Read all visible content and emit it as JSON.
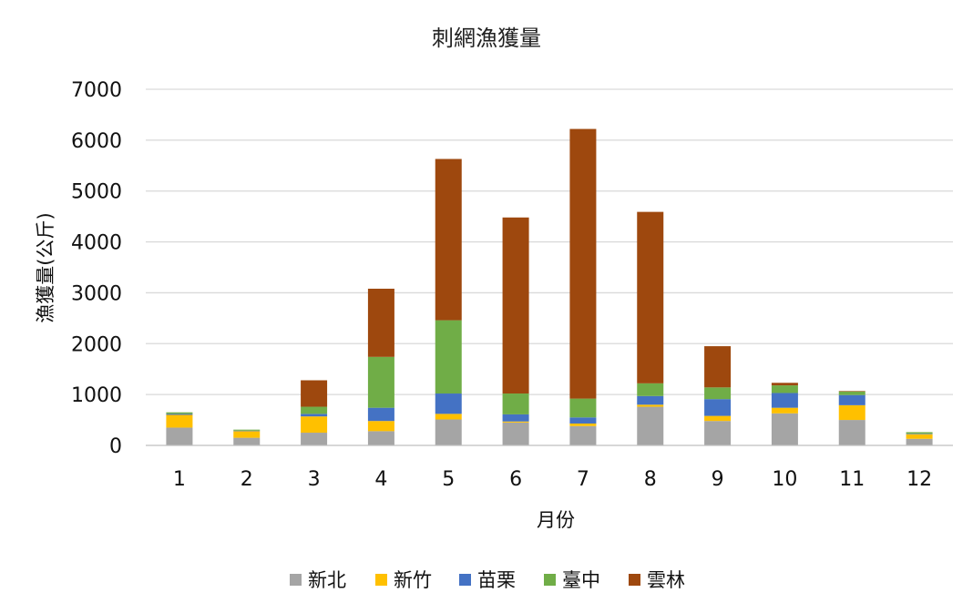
{
  "chart_data": {
    "type": "bar",
    "stacked": true,
    "title": "刺網漁獲量",
    "xlabel": "月份",
    "ylabel": "漁獲量(公斤)",
    "ylim": [
      0,
      7000
    ],
    "yticks": [
      "0",
      "1000",
      "2000",
      "3000",
      "4000",
      "5000",
      "6000",
      "7000"
    ],
    "categories": [
      "1",
      "2",
      "3",
      "4",
      "5",
      "6",
      "7",
      "8",
      "9",
      "10",
      "11",
      "12"
    ],
    "grid": true,
    "legend_position": "bottom",
    "series": [
      {
        "name": "新北",
        "color": "#a5a5a5",
        "values": [
          350,
          150,
          250,
          280,
          510,
          450,
          380,
          760,
          480,
          630,
          500,
          130
        ]
      },
      {
        "name": "新竹",
        "color": "#ffc000",
        "values": [
          250,
          130,
          320,
          200,
          110,
          20,
          50,
          40,
          100,
          110,
          290,
          90
        ]
      },
      {
        "name": "苗栗",
        "color": "#4472c4",
        "values": [
          20,
          10,
          50,
          260,
          400,
          140,
          120,
          170,
          330,
          290,
          200,
          10
        ]
      },
      {
        "name": "臺中",
        "color": "#70ad47",
        "values": [
          30,
          20,
          140,
          1000,
          1440,
          410,
          370,
          250,
          230,
          150,
          70,
          30
        ]
      },
      {
        "name": "雲林",
        "color": "#9e480e",
        "values": [
          0,
          0,
          520,
          1340,
          3170,
          3460,
          5300,
          3370,
          810,
          50,
          10,
          0
        ]
      }
    ]
  }
}
